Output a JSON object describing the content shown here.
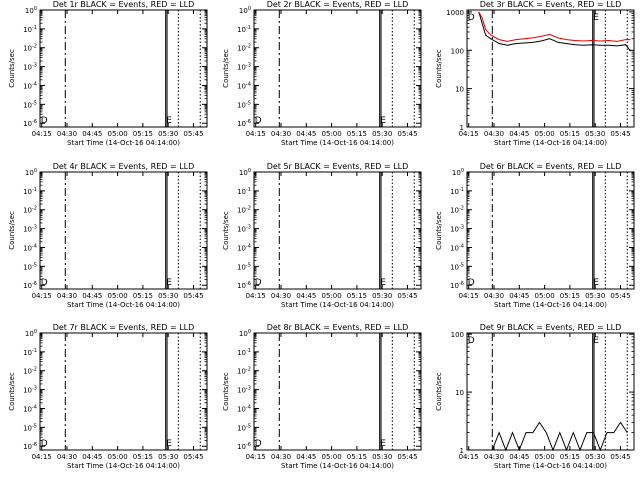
{
  "figure": {
    "background": "#ffffff",
    "axis_color": "#000000",
    "events_color": "#000000",
    "lld_color": "#e00000"
  },
  "chart_data": [
    {
      "panel": 1,
      "type": "line",
      "title": "Det 1r BLACK = Events, RED = LLD",
      "xlabel": "Start Time (14-Oct-16 04:14:00)",
      "ylabel": "Counts/sec",
      "xticks": [
        "04:15",
        "04:30",
        "04:45",
        "05:00",
        "05:15",
        "05:30",
        "05:45"
      ],
      "x_range_min": [
        1,
        100
      ],
      "yscale": "log",
      "yticks": [
        "10^0",
        "10^-1",
        "10^-2",
        "10^-3",
        "10^-4",
        "10^-5",
        "10^-6"
      ],
      "ylim_log10": [
        -6.2,
        0
      ],
      "vlines": [
        {
          "style": "dash-dot",
          "at_min": 16
        },
        {
          "style": "solid",
          "at_min": 75.5
        },
        {
          "style": "solid",
          "at_min": 76.3
        },
        {
          "style": "dotted",
          "at_min": 83
        },
        {
          "style": "dotted",
          "at_min": 96
        }
      ],
      "markers": [
        {
          "label": "D",
          "at_min": 3.5,
          "pos": "bottom"
        },
        {
          "label": "E",
          "at_min": 77.5,
          "pos": "bottom"
        }
      ],
      "series": []
    },
    {
      "panel": 2,
      "type": "line",
      "title": "Det 2r BLACK = Events, RED = LLD",
      "xlabel": "Start Time (14-Oct-16 04:14:00)",
      "ylabel": "Counts/sec",
      "xticks": [
        "04:15",
        "04:30",
        "04:45",
        "05:00",
        "05:15",
        "05:30",
        "05:45"
      ],
      "x_range_min": [
        1,
        100
      ],
      "yscale": "log",
      "yticks": [
        "10^0",
        "10^-1",
        "10^-2",
        "10^-3",
        "10^-4",
        "10^-5",
        "10^-6"
      ],
      "ylim_log10": [
        -6.2,
        0
      ],
      "vlines": [
        {
          "style": "dash-dot",
          "at_min": 16
        },
        {
          "style": "solid",
          "at_min": 75.5
        },
        {
          "style": "solid",
          "at_min": 76.3
        },
        {
          "style": "dotted",
          "at_min": 83
        },
        {
          "style": "dotted",
          "at_min": 96
        }
      ],
      "markers": [
        {
          "label": "D",
          "at_min": 3.5,
          "pos": "bottom"
        },
        {
          "label": "E",
          "at_min": 77.5,
          "pos": "bottom"
        }
      ],
      "series": []
    },
    {
      "panel": 3,
      "type": "line",
      "title": "Det 3r BLACK = Events, RED = LLD",
      "xlabel": "Start Time (14-Oct-16 04:14:00)",
      "ylabel": "Counts/sec",
      "xticks": [
        "04:15",
        "04:30",
        "04:45",
        "05:00",
        "05:15",
        "05:30",
        "05:45"
      ],
      "x_range_min": [
        1,
        100
      ],
      "yscale": "log",
      "yticks": [
        "1",
        "10",
        "100",
        "1000"
      ],
      "ylim_log10": [
        0,
        3.05
      ],
      "vlines": [
        {
          "style": "dash-dot",
          "at_min": 16
        },
        {
          "style": "solid",
          "at_min": 75.5
        },
        {
          "style": "solid",
          "at_min": 76.3
        },
        {
          "style": "dotted",
          "at_min": 83
        },
        {
          "style": "dotted",
          "at_min": 96
        }
      ],
      "markers": [
        {
          "label": "D",
          "at_min": 3.5,
          "pos": "top"
        },
        {
          "label": "E",
          "at_min": 77.5,
          "pos": "top"
        }
      ],
      "series": [
        {
          "role": "events",
          "color": "#000000",
          "x": [
            8,
            10,
            12,
            15,
            20,
            25,
            30,
            35,
            40,
            45,
            50,
            55,
            60,
            65,
            70,
            75,
            80,
            85,
            90,
            95,
            98
          ],
          "y": [
            1000,
            500,
            250,
            200,
            150,
            135,
            150,
            155,
            160,
            175,
            200,
            160,
            150,
            140,
            135,
            140,
            135,
            135,
            130,
            140,
            95
          ]
        },
        {
          "role": "lld",
          "color": "#e00000",
          "x": [
            8,
            10,
            12,
            15,
            20,
            25,
            30,
            35,
            40,
            45,
            50,
            55,
            60,
            65,
            70,
            75,
            80,
            85,
            90,
            95,
            98
          ],
          "y": [
            1000,
            700,
            350,
            250,
            190,
            170,
            190,
            200,
            210,
            230,
            260,
            210,
            190,
            180,
            175,
            180,
            175,
            180,
            170,
            190,
            190
          ]
        }
      ]
    },
    {
      "panel": 4,
      "type": "line",
      "title": "Det 4r BLACK = Events, RED = LLD",
      "xlabel": "Start Time (14-Oct-16 04:14:00)",
      "ylabel": "Counts/sec",
      "xticks": [
        "04:15",
        "04:30",
        "04:45",
        "05:00",
        "05:15",
        "05:30",
        "05:45"
      ],
      "x_range_min": [
        1,
        100
      ],
      "yscale": "log",
      "yticks": [
        "10^0",
        "10^-1",
        "10^-2",
        "10^-3",
        "10^-4",
        "10^-5",
        "10^-6"
      ],
      "ylim_log10": [
        -6.2,
        0
      ],
      "vlines": [
        {
          "style": "dash-dot",
          "at_min": 16
        },
        {
          "style": "solid",
          "at_min": 75.5
        },
        {
          "style": "solid",
          "at_min": 76.3
        },
        {
          "style": "dotted",
          "at_min": 83
        },
        {
          "style": "dotted",
          "at_min": 96
        }
      ],
      "markers": [
        {
          "label": "D",
          "at_min": 3.5,
          "pos": "bottom"
        },
        {
          "label": "E",
          "at_min": 77.5,
          "pos": "bottom"
        }
      ],
      "series": []
    },
    {
      "panel": 5,
      "type": "line",
      "title": "Det 5r BLACK = Events, RED = LLD",
      "xlabel": "Start Time (14-Oct-16 04:14:00)",
      "ylabel": "Counts/sec",
      "xticks": [
        "04:15",
        "04:30",
        "04:45",
        "05:00",
        "05:15",
        "05:30",
        "05:45"
      ],
      "x_range_min": [
        1,
        100
      ],
      "yscale": "log",
      "yticks": [
        "10^0",
        "10^-1",
        "10^-2",
        "10^-3",
        "10^-4",
        "10^-5",
        "10^-6"
      ],
      "ylim_log10": [
        -6.2,
        0
      ],
      "vlines": [
        {
          "style": "dash-dot",
          "at_min": 16
        },
        {
          "style": "solid",
          "at_min": 75.5
        },
        {
          "style": "solid",
          "at_min": 76.3
        },
        {
          "style": "dotted",
          "at_min": 83
        },
        {
          "style": "dotted",
          "at_min": 96
        }
      ],
      "markers": [
        {
          "label": "D",
          "at_min": 3.5,
          "pos": "bottom"
        },
        {
          "label": "E",
          "at_min": 77.5,
          "pos": "bottom"
        }
      ],
      "series": []
    },
    {
      "panel": 6,
      "type": "line",
      "title": "Det 6r BLACK = Events, RED = LLD",
      "xlabel": "Start Time (14-Oct-16 04:14:00)",
      "ylabel": "Counts/sec",
      "xticks": [
        "04:15",
        "04:30",
        "04:45",
        "05:00",
        "05:15",
        "05:30",
        "05:45"
      ],
      "x_range_min": [
        1,
        100
      ],
      "yscale": "log",
      "yticks": [
        "10^0",
        "10^-1",
        "10^-2",
        "10^-3",
        "10^-4",
        "10^-5",
        "10^-6"
      ],
      "ylim_log10": [
        -6.2,
        0
      ],
      "vlines": [
        {
          "style": "dash-dot",
          "at_min": 16
        },
        {
          "style": "solid",
          "at_min": 75.5
        },
        {
          "style": "solid",
          "at_min": 76.3
        },
        {
          "style": "dotted",
          "at_min": 83
        },
        {
          "style": "dotted",
          "at_min": 96
        }
      ],
      "markers": [
        {
          "label": "D",
          "at_min": 3.5,
          "pos": "bottom"
        },
        {
          "label": "E",
          "at_min": 77.5,
          "pos": "bottom"
        }
      ],
      "series": []
    },
    {
      "panel": 7,
      "type": "line",
      "title": "Det 7r BLACK = Events, RED = LLD",
      "xlabel": "Start Time (14-Oct-16 04:14:00)",
      "ylabel": "Counts/sec",
      "xticks": [
        "04:15",
        "04:30",
        "04:45",
        "05:00",
        "05:15",
        "05:30",
        "05:45"
      ],
      "x_range_min": [
        1,
        100
      ],
      "yscale": "log",
      "yticks": [
        "10^0",
        "10^-1",
        "10^-2",
        "10^-3",
        "10^-4",
        "10^-5",
        "10^-6"
      ],
      "ylim_log10": [
        -6.2,
        0
      ],
      "vlines": [
        {
          "style": "dash-dot",
          "at_min": 16
        },
        {
          "style": "solid",
          "at_min": 75.5
        },
        {
          "style": "solid",
          "at_min": 76.3
        },
        {
          "style": "dotted",
          "at_min": 83
        },
        {
          "style": "dotted",
          "at_min": 96
        }
      ],
      "markers": [
        {
          "label": "D",
          "at_min": 3.5,
          "pos": "bottom"
        },
        {
          "label": "E",
          "at_min": 77.5,
          "pos": "bottom"
        }
      ],
      "series": []
    },
    {
      "panel": 8,
      "type": "line",
      "title": "Det 8r BLACK = Events, RED = LLD",
      "xlabel": "Start Time (14-Oct-16 04:14:00)",
      "ylabel": "Counts/sec",
      "xticks": [
        "04:15",
        "04:30",
        "04:45",
        "05:00",
        "05:15",
        "05:30",
        "05:45"
      ],
      "x_range_min": [
        1,
        100
      ],
      "yscale": "log",
      "yticks": [
        "10^0",
        "10^-1",
        "10^-2",
        "10^-3",
        "10^-4",
        "10^-5",
        "10^-6"
      ],
      "ylim_log10": [
        -6.2,
        0
      ],
      "vlines": [
        {
          "style": "dash-dot",
          "at_min": 16
        },
        {
          "style": "solid",
          "at_min": 75.5
        },
        {
          "style": "solid",
          "at_min": 76.3
        },
        {
          "style": "dotted",
          "at_min": 83
        },
        {
          "style": "dotted",
          "at_min": 96
        }
      ],
      "markers": [
        {
          "label": "D",
          "at_min": 3.5,
          "pos": "bottom"
        },
        {
          "label": "E",
          "at_min": 77.5,
          "pos": "bottom"
        }
      ],
      "series": []
    },
    {
      "panel": 9,
      "type": "line",
      "title": "Det 9r BLACK = Events, RED = LLD",
      "xlabel": "Start Time (14-Oct-16 04:14:00)",
      "ylabel": "Counts/sec",
      "xticks": [
        "04:15",
        "04:30",
        "04:45",
        "05:00",
        "05:15",
        "05:30",
        "05:45"
      ],
      "x_range_min": [
        1,
        100
      ],
      "yscale": "log",
      "yticks": [
        "1",
        "10",
        "100"
      ],
      "ylim_log10": [
        0,
        2.02
      ],
      "vlines": [
        {
          "style": "dash-dot",
          "at_min": 16
        },
        {
          "style": "solid",
          "at_min": 75.5
        },
        {
          "style": "solid",
          "at_min": 76.3
        },
        {
          "style": "dotted",
          "at_min": 83
        },
        {
          "style": "dotted",
          "at_min": 96
        }
      ],
      "markers": [
        {
          "label": "D",
          "at_min": 3.5,
          "pos": "top"
        },
        {
          "label": "E",
          "at_min": 77.5,
          "pos": "top"
        }
      ],
      "series": [
        {
          "role": "events",
          "color": "#000000",
          "x": [
            16,
            20,
            24,
            28,
            32,
            36,
            40,
            44,
            48,
            52,
            56,
            60,
            64,
            68,
            72,
            76,
            80,
            84,
            88,
            92,
            96
          ],
          "y": [
            1,
            2,
            1,
            2,
            1,
            2,
            2,
            3,
            2,
            1,
            2,
            1,
            2,
            1,
            2,
            2,
            1,
            2,
            2,
            3,
            2
          ]
        }
      ]
    }
  ]
}
